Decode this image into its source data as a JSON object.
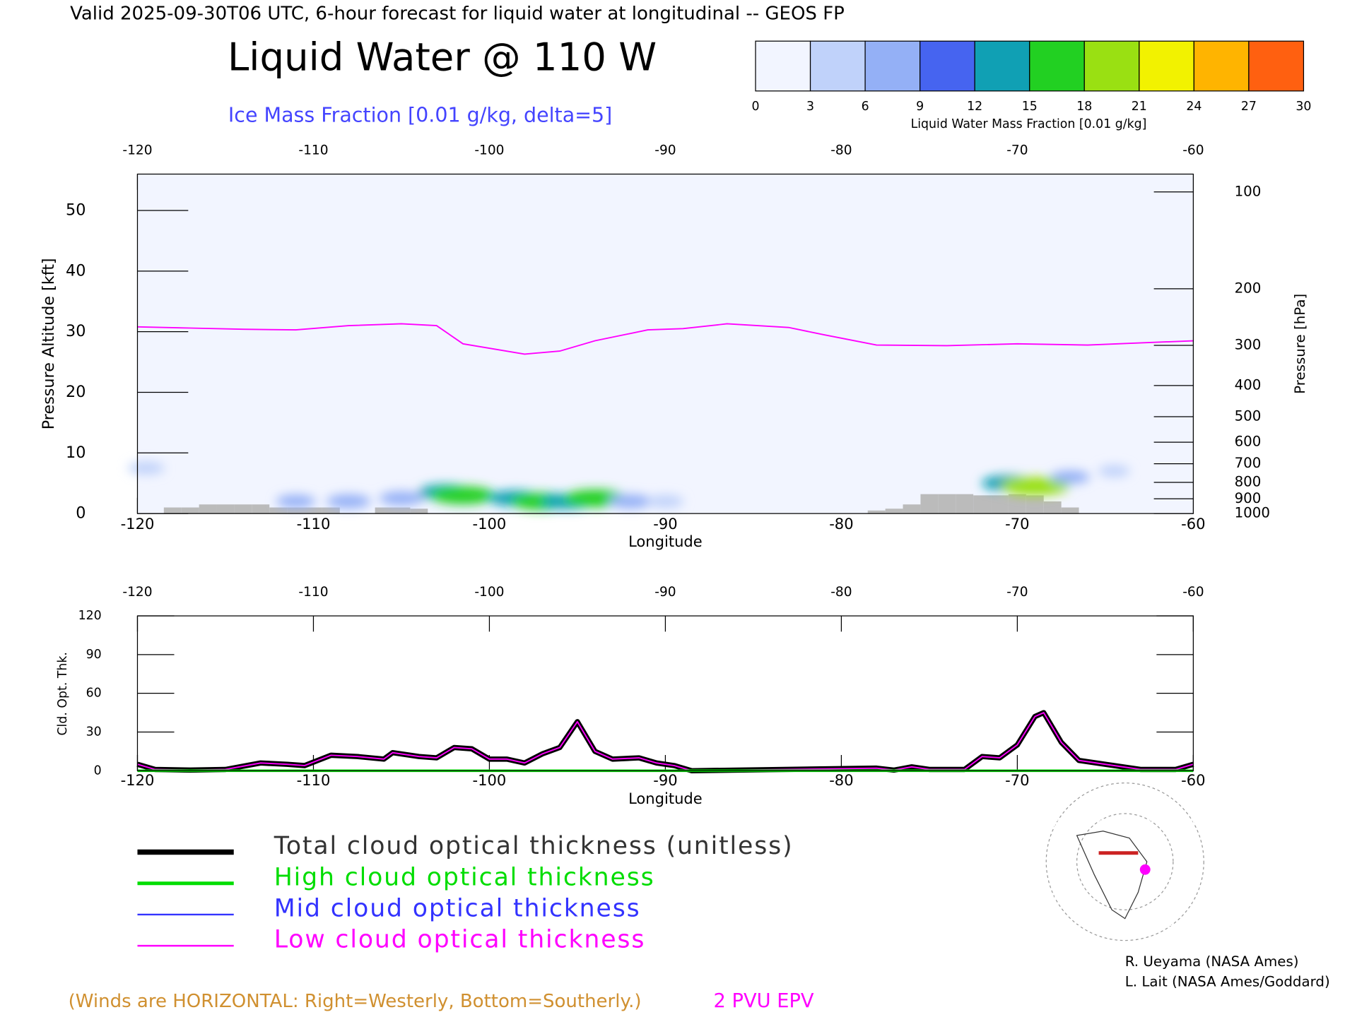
{
  "title": "Valid 2025-09-30T06 UTC, 6-hour forecast for liquid water at longitudinal -- GEOS FP",
  "credits": [
    "R. Ueyama (NASA Ames)",
    "L. Lait (NASA Ames/Goddard)"
  ],
  "chart_data": [
    {
      "type": "cross_section",
      "title": "Liquid Water @ 110 W",
      "subtitle": "Ice Mass Fraction [0.01 g/kg, delta=5]",
      "colorbar": {
        "label": "Liquid Water Mass Fraction [0.01 g/kg]",
        "ticks": [
          0,
          3,
          6,
          9,
          12,
          15,
          18,
          21,
          24,
          27,
          30
        ],
        "colors": [
          "#f2f5ff",
          "#c0d2fa",
          "#94b0f6",
          "#4664f0",
          "#10a0b4",
          "#22d022",
          "#9ae012",
          "#f2f200",
          "#ffb400",
          "#ff6010"
        ]
      },
      "xlabel": "Longitude",
      "ylabel": "Pressure Altitude [kft]",
      "y2label": "Pressure [hPa]",
      "xlim": [
        -120,
        -60
      ],
      "xticks": [
        -120,
        -110,
        -100,
        -90,
        -80,
        -70,
        -60
      ],
      "ylim": [
        0,
        56
      ],
      "yticks": [
        0,
        10,
        20,
        30,
        40,
        50
      ],
      "y2lim": [
        1000,
        88
      ],
      "y2scale": "log",
      "y2ticks": [
        100,
        200,
        300,
        400,
        500,
        600,
        700,
        800,
        900,
        1000
      ],
      "note": "(Winds are HORIZONTAL: Right=Westerly, Bottom=Southerly.)",
      "liquid_water": {
        "x": [
          -119.5,
          -111,
          -108,
          -105,
          -102.5,
          -101.5,
          -98.5,
          -97,
          -95.5,
          -94,
          -92,
          -90,
          -70.5,
          -69,
          -67,
          -64.5
        ],
        "y": [
          7.5,
          2,
          2,
          2.5,
          3.5,
          3,
          2.5,
          2,
          2,
          2.5,
          2,
          2,
          5,
          4.5,
          6,
          7
        ],
        "values": [
          5,
          6,
          8,
          8,
          12,
          17,
          12,
          16,
          12,
          16,
          8,
          5,
          12,
          18,
          6,
          3
        ]
      },
      "terrain": {
        "color": "#bbbbbb",
        "x": [
          -118,
          -117,
          -116,
          -115,
          -114,
          -113,
          -112,
          -111,
          -110,
          -109,
          -106,
          -105,
          -104,
          -78,
          -77,
          -76,
          -75,
          -74,
          -73,
          -72,
          -71,
          -70,
          -69,
          -68,
          -67
        ],
        "values": [
          1,
          1,
          1.5,
          1.5,
          1.5,
          1.5,
          1,
          1,
          1,
          1,
          1,
          1,
          0.8,
          0.5,
          0.8,
          1.5,
          3.2,
          3.2,
          3.2,
          3,
          3,
          3.2,
          3,
          2,
          1
        ]
      },
      "series": [
        {
          "name": "2 PVU EPV",
          "color": "#ff00ff",
          "x": [
            -120,
            -117,
            -114,
            -111,
            -108,
            -105,
            -103,
            -101.5,
            -98,
            -96,
            -94,
            -91,
            -89,
            -86.5,
            -83,
            -81,
            -78,
            -74,
            -70,
            -66,
            -60
          ],
          "values": [
            30.8,
            30.6,
            30.4,
            30.3,
            31,
            31.3,
            31,
            28,
            26.3,
            26.8,
            28.5,
            30.3,
            30.5,
            31.3,
            30.7,
            29.5,
            27.8,
            27.7,
            28,
            27.8,
            28.5
          ]
        }
      ]
    },
    {
      "type": "line",
      "ylabel": "Cld. Opt. Thk.",
      "xlabel": "Longitude",
      "xlim": [
        -120,
        -60
      ],
      "xticks": [
        -120,
        -110,
        -100,
        -90,
        -80,
        -70,
        -60
      ],
      "ylim": [
        0,
        120
      ],
      "yticks": [
        0,
        30,
        60,
        90,
        120
      ],
      "x": [
        -120,
        -119,
        -117,
        -115,
        -113,
        -111.5,
        -110.5,
        -109,
        -107.5,
        -106,
        -105.5,
        -104,
        -103,
        -102,
        -101,
        -100,
        -99,
        -98,
        -97,
        -96,
        -95,
        -94,
        -93,
        -91.5,
        -90.5,
        -89.5,
        -88.5,
        -78,
        -77,
        -76,
        -75,
        -73,
        -72,
        -71,
        -70,
        -69,
        -68.5,
        -67.5,
        -66.5,
        -65,
        -63,
        -61,
        -60
      ],
      "series": [
        {
          "name": "Total cloud optical thickness (unitless)",
          "color": "#000000",
          "values": [
            5,
            1,
            0.5,
            1,
            6,
            5,
            4,
            12,
            11,
            9,
            14,
            11,
            10,
            18,
            17,
            9,
            9,
            6,
            13,
            18,
            38,
            15,
            9,
            10,
            6,
            4,
            0,
            2,
            0.5,
            3,
            1,
            1,
            11,
            10,
            20,
            42,
            45,
            22,
            8,
            5,
            1,
            1,
            5
          ]
        },
        {
          "name": "High cloud optical thickness",
          "color": "#00dd00",
          "values": [
            0,
            0,
            0,
            0,
            0,
            0,
            0,
            0,
            0,
            0,
            0,
            0,
            0,
            0,
            0,
            0,
            0,
            0,
            0,
            0,
            0,
            0,
            0,
            0,
            0,
            0,
            0,
            0,
            0,
            0,
            0,
            0,
            0,
            0,
            0,
            0,
            0,
            0,
            0,
            0,
            0,
            0,
            0
          ]
        },
        {
          "name": "Mid cloud optical thickness",
          "color": "#3333ff",
          "values": [
            0,
            0,
            0,
            0,
            0,
            0,
            0,
            0,
            0,
            0,
            0,
            0,
            0,
            0,
            0,
            0,
            0,
            0,
            0,
            0,
            0,
            0,
            0,
            0,
            0,
            0,
            0,
            0,
            0,
            0,
            0,
            0,
            0,
            0,
            0,
            0,
            0,
            0,
            0,
            0,
            0,
            0,
            0
          ]
        },
        {
          "name": "Low cloud optical thickness",
          "color": "#ff00ff",
          "values": [
            5,
            1,
            0.5,
            1,
            6,
            5,
            4,
            12,
            11,
            9,
            14,
            11,
            10,
            18,
            17,
            9,
            9,
            6,
            13,
            18,
            38,
            15,
            9,
            10,
            6,
            4,
            0,
            2,
            0.5,
            3,
            1,
            1,
            11,
            10,
            20,
            42,
            45,
            22,
            8,
            5,
            1,
            1,
            5
          ]
        }
      ]
    }
  ]
}
